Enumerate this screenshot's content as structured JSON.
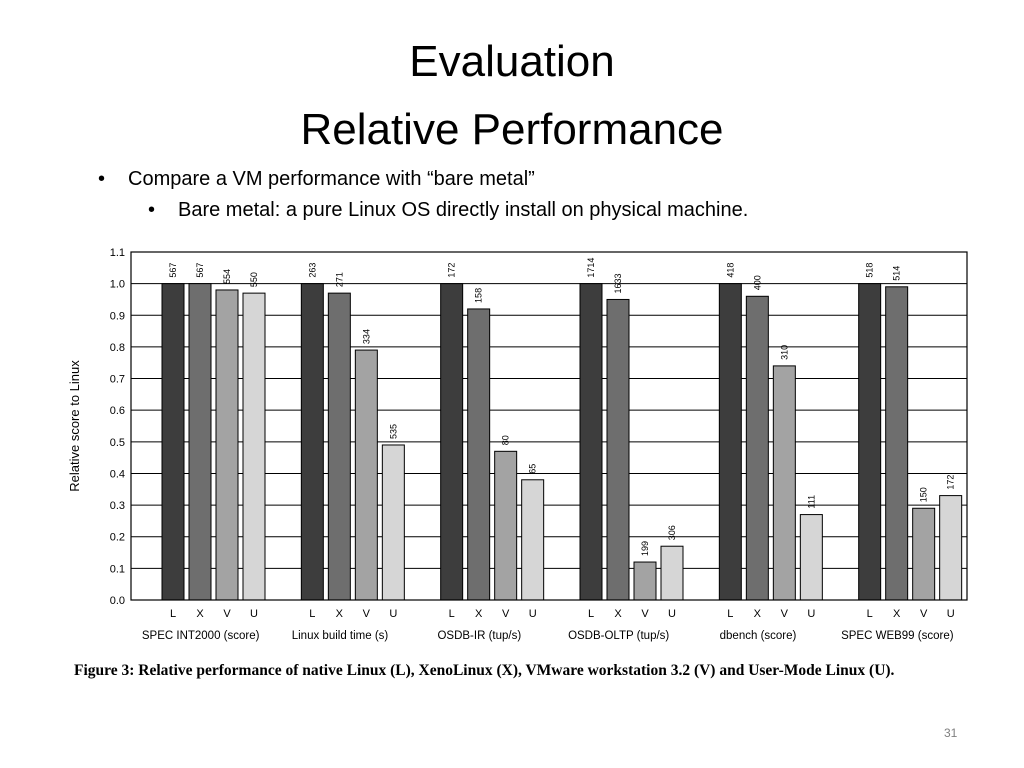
{
  "slide": {
    "title_line1": "Evaluation",
    "title_line2": "Relative Performance",
    "bullets": [
      "Compare a VM performance with “bare metal”",
      "Bare metal: a pure Linux OS directly install on physical machine."
    ],
    "caption": "Figure 3: Relative performance of native Linux (L), XenoLinux (X), VMware workstation 3.2 (V) and User-Mode Linux (U).",
    "page_number": "31"
  },
  "chart_data": {
    "type": "bar",
    "ylabel": "Relative score to Linux",
    "ylim": [
      0,
      1.1
    ],
    "yticks": [
      "0.0",
      "0.1",
      "0.2",
      "0.3",
      "0.4",
      "0.5",
      "0.6",
      "0.7",
      "0.8",
      "0.9",
      "1.0",
      "1.1"
    ],
    "grid": true,
    "bar_letters": [
      "L",
      "X",
      "V",
      "U"
    ],
    "colors": [
      "#3d3d3d",
      "#6e6e6e",
      "#a3a3a3",
      "#d6d6d6"
    ],
    "groups": [
      {
        "name": "SPEC INT2000 (score)",
        "values": [
          1.0,
          1.0,
          0.98,
          0.97
        ],
        "labels": [
          "567",
          "567",
          "554",
          "550"
        ]
      },
      {
        "name": "Linux build time (s)",
        "values": [
          1.0,
          0.97,
          0.79,
          0.49
        ],
        "labels": [
          "263",
          "271",
          "334",
          "535"
        ]
      },
      {
        "name": "OSDB-IR (tup/s)",
        "values": [
          1.0,
          0.92,
          0.47,
          0.38
        ],
        "labels": [
          "172",
          "158",
          "80",
          "65"
        ]
      },
      {
        "name": "OSDB-OLTP (tup/s)",
        "values": [
          1.0,
          0.95,
          0.12,
          0.17
        ],
        "labels": [
          "1714",
          "1633",
          "199",
          "306"
        ]
      },
      {
        "name": "dbench (score)",
        "values": [
          1.0,
          0.96,
          0.74,
          0.27
        ],
        "labels": [
          "418",
          "400",
          "310",
          "111"
        ]
      },
      {
        "name": "SPEC WEB99 (score)",
        "values": [
          1.0,
          0.99,
          0.29,
          0.33
        ],
        "labels": [
          "518",
          "514",
          "150",
          "172"
        ]
      }
    ]
  }
}
